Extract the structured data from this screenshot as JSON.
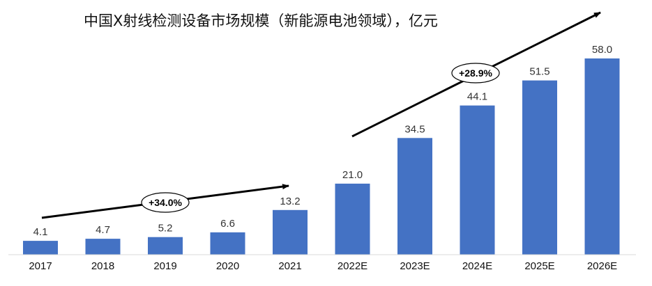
{
  "chart_data": {
    "type": "bar",
    "title": "中国X射线检测设备市场规模（新能源电池领域），亿元",
    "categories": [
      "2017",
      "2018",
      "2019",
      "2020",
      "2021",
      "2022E",
      "2023E",
      "2024E",
      "2025E",
      "2026E"
    ],
    "values": [
      4.1,
      4.7,
      5.2,
      6.6,
      13.2,
      21.0,
      34.5,
      44.1,
      51.5,
      58.0
    ],
    "value_labels": [
      "4.1",
      "4.7",
      "5.2",
      "6.6",
      "13.2",
      "21.0",
      "34.5",
      "44.1",
      "51.5",
      "58.0"
    ],
    "xlabel": "",
    "ylabel": "",
    "ylim": [
      0,
      60
    ],
    "grid": false,
    "colors": {
      "bar": "#4472c4",
      "axis": "#d9d9d9",
      "arrow": "#000000"
    },
    "annotations": [
      {
        "label": "+34.0%",
        "from_category": "2017",
        "to_category": "2021"
      },
      {
        "label": "+28.9%",
        "from_category": "2022E",
        "to_category": "2026E"
      }
    ]
  }
}
